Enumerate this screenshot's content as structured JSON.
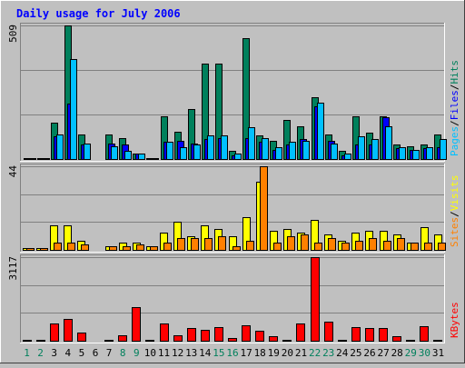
{
  "chart_data": {
    "type": "bar",
    "title": "Daily usage for July 2006",
    "x": [
      "1",
      "2",
      "3",
      "4",
      "5",
      "6",
      "7",
      "8",
      "9",
      "10",
      "11",
      "12",
      "13",
      "14",
      "15",
      "16",
      "17",
      "18",
      "19",
      "20",
      "21",
      "22",
      "23",
      "24",
      "25",
      "26",
      "27",
      "28",
      "29",
      "30",
      "31"
    ],
    "weekend_days": [
      "1",
      "2",
      "8",
      "9",
      "15",
      "16",
      "22",
      "23",
      "29",
      "30"
    ],
    "panels": [
      {
        "id": "top",
        "ymax_label": "509",
        "ylim": [
          0,
          509
        ],
        "legend": [
          "Pages",
          "Files",
          "Hits"
        ],
        "legend_separator": "/",
        "series": [
          {
            "name": "Hits",
            "color": "#00805c",
            "values": [
              5,
              5,
              139,
              509,
              95,
              0,
              95,
              80,
              22,
              5,
              163,
              105,
              190,
              365,
              365,
              30,
              462,
              90,
              70,
              150,
              125,
              235,
              95,
              30,
              163,
              100,
              163,
              55,
              50,
              55,
              95
            ]
          },
          {
            "name": "Files",
            "color": "#0000ff",
            "values": [
              5,
              5,
              85,
              210,
              55,
              0,
              60,
              55,
              20,
              4,
              65,
              70,
              60,
              75,
              80,
              15,
              80,
              65,
              35,
              55,
              75,
              200,
              70,
              15,
              55,
              55,
              160,
              40,
              35,
              40,
              45
            ]
          },
          {
            "name": "Pages",
            "color": "#00c0ff",
            "values": [
              5,
              5,
              95,
              380,
              60,
              0,
              50,
              30,
              22,
              4,
              65,
              45,
              55,
              90,
              90,
              20,
              120,
              80,
              45,
              65,
              70,
              215,
              60,
              20,
              85,
              75,
              125,
              45,
              35,
              45,
              75
            ]
          }
        ]
      },
      {
        "id": "mid",
        "ymax_label": "44",
        "ylim": [
          0,
          44
        ],
        "legend": [
          "Sites",
          "Visits"
        ],
        "legend_separator": "/",
        "series": [
          {
            "name": "Visits",
            "color": "#ffff00",
            "values": [
              1,
              1,
              13,
              13,
              5,
              0,
              2,
              4,
              4,
              2,
              9,
              15,
              7,
              13,
              11,
              7,
              17,
              36,
              10,
              11,
              9,
              16,
              8,
              5,
              9,
              10,
              10,
              8,
              4,
              12,
              8
            ]
          },
          {
            "name": "Sites",
            "color": "#ff8000",
            "values": [
              1,
              1,
              4,
              4,
              3,
              0,
              2,
              2,
              3,
              2,
              4,
              6,
              6,
              6,
              7,
              2,
              5,
              44,
              4,
              7,
              8,
              4,
              6,
              4,
              5,
              6,
              5,
              6,
              4,
              4,
              4
            ]
          }
        ]
      },
      {
        "id": "bot",
        "ymax_label": "3117",
        "ylim": [
          0,
          3117
        ],
        "legend": [
          "KBytes"
        ],
        "legend_separator": "",
        "series": [
          {
            "name": "KBytes",
            "color": "#ff0000",
            "values": [
              30,
              30,
              660,
              830,
              320,
              0,
              30,
              200,
              1270,
              30,
              660,
              210,
              460,
              410,
              500,
              90,
              560,
              360,
              160,
              40,
              630,
              3117,
              700,
              30,
              500,
              460,
              460,
              160,
              30,
              530,
              40
            ]
          }
        ]
      }
    ]
  },
  "colors": {
    "background": "#c0c0c0",
    "title": "#0000ff",
    "axis_label": "#000000",
    "weekend_label": "#00805c",
    "gridline": "#808080"
  }
}
